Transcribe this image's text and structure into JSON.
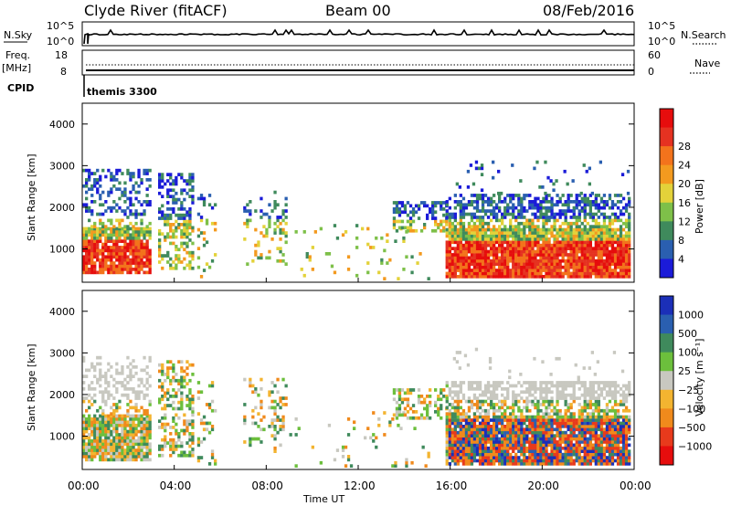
{
  "header": {
    "station": "Clyde River (fitACF)",
    "beam": "Beam 00",
    "date": "08/Feb/2016"
  },
  "nsky_panel": {
    "left_label": "N.Sky",
    "right_label": "N.Search",
    "left_ticks": [
      "10^5",
      "10^0"
    ],
    "right_ticks": [
      "10^5",
      "10^0"
    ]
  },
  "freq_panel": {
    "left_label_1": "Freq.",
    "left_label_2": "[MHz]",
    "left_ticks": [
      "18",
      "8"
    ],
    "right_label": "Nave",
    "right_ticks": [
      "60",
      "0"
    ],
    "cpid_label": "CPID",
    "cpid_text": "themis 3300"
  },
  "chart_data": [
    {
      "type": "heatmap",
      "name": "power",
      "ylabel": "Slant Range [km]",
      "yticks": [
        "1000",
        "2000",
        "3000",
        "4000"
      ],
      "ylim": [
        200,
        4500
      ],
      "colorbar_label": "Power [dB]",
      "colorbar_ticks": [
        "4",
        "8",
        "12",
        "16",
        "20",
        "24",
        "28"
      ],
      "colors": [
        "#1b1bd8",
        "#2a5fb0",
        "#3f8a5c",
        "#7ec049",
        "#e3d23a",
        "#f39a1f",
        "#f3731c",
        "#e53221",
        "#e60d0d"
      ]
    },
    {
      "type": "heatmap",
      "name": "velocity",
      "ylabel": "Slant Range [km]",
      "yticks": [
        "1000",
        "2000",
        "3000",
        "4000"
      ],
      "ylim": [
        200,
        4500
      ],
      "colorbar_label": "Velocity [m s⁻¹]",
      "colorbar_ticks": [
        "1000",
        "500",
        "100",
        "25",
        "−25",
        "−100",
        "−500",
        "−1000"
      ],
      "colors": [
        "#1b2fb8",
        "#2a5fb0",
        "#3f8a5c",
        "#6cbf3c",
        "#c8c8c0",
        "#f3b430",
        "#f08a1c",
        "#e83a1c",
        "#e60d0d"
      ]
    }
  ],
  "xaxis": {
    "label": "Time UT",
    "ticks": [
      "00:00",
      "04:00",
      "08:00",
      "12:00",
      "16:00",
      "20:00",
      "00:00"
    ]
  }
}
